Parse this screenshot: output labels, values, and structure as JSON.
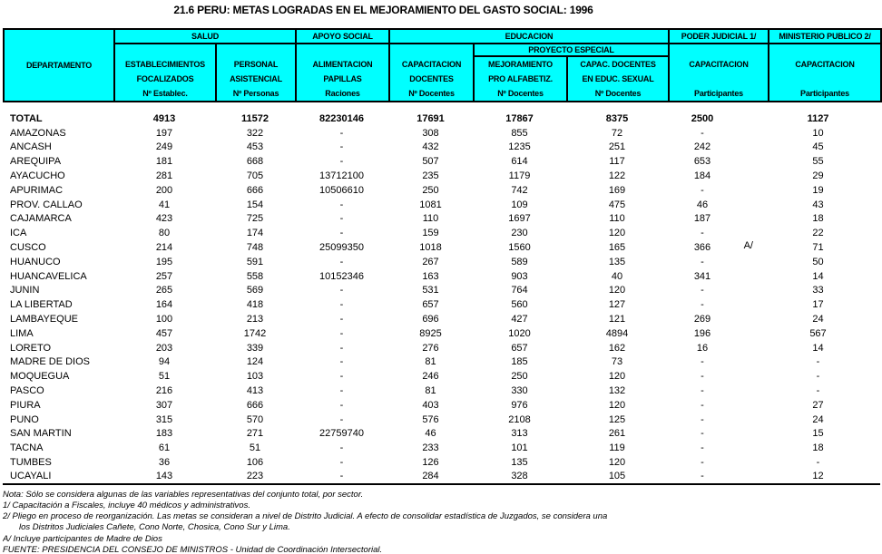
{
  "title": "21.6 PERU: METAS LOGRADAS EN EL MEJORAMIENTO DEL GASTO SOCIAL: 1996",
  "colors": {
    "header_bg": "#00FFFF",
    "border": "#000000",
    "text": "#000000",
    "page_bg": "#FFFFFF"
  },
  "table": {
    "groups": {
      "departamento": "DEPARTAMENTO",
      "salud": "SALUD",
      "apoyo_social": "APOYO SOCIAL",
      "educacion": "EDUCACION",
      "proyecto_especial": "PROYECTO ESPECIAL",
      "poder_judicial": "PODER JUDICIAL 1/",
      "ministerio_publico": "MINISTERIO PUBLICO 2/"
    },
    "columns": [
      {
        "lines": [
          "ESTABLECIMIENTOS",
          "FOCALIZADOS",
          "Nº Establec."
        ]
      },
      {
        "lines": [
          "PERSONAL",
          "ASISTENCIAL",
          "Nº Personas"
        ]
      },
      {
        "lines": [
          "ALIMENTACION",
          "PAPILLAS",
          "Raciones"
        ]
      },
      {
        "lines": [
          "CAPACITACION",
          "DOCENTES",
          "Nº Docentes"
        ]
      },
      {
        "lines": [
          "MEJORAMIENTO",
          "PRO ALFABETIZ.",
          "Nº Docentes"
        ]
      },
      {
        "lines": [
          "CAPAC. DOCENTES",
          "EN EDUC. SEXUAL",
          "Nº Docentes"
        ]
      },
      {
        "lines": [
          "CAPACITACION",
          "",
          "Participantes"
        ]
      },
      {
        "lines": [
          "CAPACITACION",
          "",
          "Participantes"
        ]
      }
    ],
    "rows": [
      {
        "name": "TOTAL",
        "bold": true,
        "values": [
          "4913",
          "11572",
          "82230146",
          "17691",
          "17867",
          "8375",
          "2500",
          "1127"
        ]
      },
      {
        "name": "AMAZONAS",
        "values": [
          "197",
          "322",
          "-",
          "308",
          "855",
          "72",
          "-",
          "10"
        ]
      },
      {
        "name": "ANCASH",
        "values": [
          "249",
          "453",
          "-",
          "432",
          "1235",
          "251",
          "242",
          "45"
        ]
      },
      {
        "name": "AREQUIPA",
        "values": [
          "181",
          "668",
          "-",
          "507",
          "614",
          "117",
          "653",
          "55"
        ]
      },
      {
        "name": "AYACUCHO",
        "values": [
          "281",
          "705",
          "13712100",
          "235",
          "1179",
          "122",
          "184",
          "29"
        ]
      },
      {
        "name": "APURIMAC",
        "values": [
          "200",
          "666",
          "10506610",
          "250",
          "742",
          "169",
          "-",
          "19"
        ]
      },
      {
        "name": "PROV. CALLAO",
        "values": [
          "41",
          "154",
          "-",
          "1081",
          "109",
          "475",
          "46",
          "43"
        ]
      },
      {
        "name": "CAJAMARCA",
        "values": [
          "423",
          "725",
          "-",
          "110",
          "1697",
          "110",
          "187",
          "18"
        ]
      },
      {
        "name": "ICA",
        "values": [
          "80",
          "174",
          "-",
          "159",
          "230",
          "120",
          "-",
          "22"
        ]
      },
      {
        "name": "CUSCO",
        "values": [
          "214",
          "748",
          "25099350",
          "1018",
          "1560",
          "165",
          "366",
          "71"
        ],
        "marker": {
          "col": 6,
          "text": "A/"
        }
      },
      {
        "name": "HUANUCO",
        "values": [
          "195",
          "591",
          "-",
          "267",
          "589",
          "135",
          "-",
          "50"
        ]
      },
      {
        "name": "HUANCAVELICA",
        "values": [
          "257",
          "558",
          "10152346",
          "163",
          "903",
          "40",
          "341",
          "14"
        ]
      },
      {
        "name": "JUNIN",
        "values": [
          "265",
          "569",
          "-",
          "531",
          "764",
          "120",
          "-",
          "33"
        ]
      },
      {
        "name": "LA LIBERTAD",
        "values": [
          "164",
          "418",
          "-",
          "657",
          "560",
          "127",
          "-",
          "17"
        ]
      },
      {
        "name": "LAMBAYEQUE",
        "values": [
          "100",
          "213",
          "-",
          "696",
          "427",
          "121",
          "269",
          "24"
        ]
      },
      {
        "name": "LIMA",
        "values": [
          "457",
          "1742",
          "-",
          "8925",
          "1020",
          "4894",
          "196",
          "567"
        ]
      },
      {
        "name": "LORETO",
        "values": [
          "203",
          "339",
          "-",
          "276",
          "657",
          "162",
          "16",
          "14"
        ]
      },
      {
        "name": "MADRE DE DIOS",
        "values": [
          "94",
          "124",
          "-",
          "81",
          "185",
          "73",
          "-",
          "-"
        ]
      },
      {
        "name": "MOQUEGUA",
        "values": [
          "51",
          "103",
          "-",
          "246",
          "250",
          "120",
          "-",
          "-"
        ]
      },
      {
        "name": "PASCO",
        "values": [
          "216",
          "413",
          "-",
          "81",
          "330",
          "132",
          "-",
          "-"
        ]
      },
      {
        "name": "PIURA",
        "values": [
          "307",
          "666",
          "-",
          "403",
          "976",
          "120",
          "-",
          "27"
        ]
      },
      {
        "name": "PUNO",
        "values": [
          "315",
          "570",
          "-",
          "576",
          "2108",
          "125",
          "-",
          "24"
        ]
      },
      {
        "name": "SAN MARTIN",
        "values": [
          "183",
          "271",
          "22759740",
          "46",
          "313",
          "261",
          "-",
          "15"
        ]
      },
      {
        "name": "TACNA",
        "values": [
          "61",
          "51",
          "-",
          "233",
          "101",
          "119",
          "-",
          "18"
        ]
      },
      {
        "name": "TUMBES",
        "values": [
          "36",
          "106",
          "-",
          "126",
          "135",
          "120",
          "-",
          "-"
        ]
      },
      {
        "name": "UCAYALI",
        "values": [
          "143",
          "223",
          "-",
          "284",
          "328",
          "105",
          "-",
          "12"
        ]
      }
    ]
  },
  "notes": [
    {
      "text": "Nota:   Sólo se considera algunas de las variables representativas del conjunto total,  por sector.",
      "indent": false
    },
    {
      "text": "1/  Capacitación a Fiscales, incluye 40 médicos y administrativos.",
      "indent": false
    },
    {
      "text": "2/  Pliego en proceso de reorganización.  Las metas se consideran a nivel de Distrito Judicial.  A efecto de consolidar estadística de Juzgados, se considera una",
      "indent": false
    },
    {
      "text": "los Distritos Judiciales Cañete, Cono Norte, Chosica, Cono Sur y Lima.",
      "indent": true
    },
    {
      "text": "A/  Incluye participantes de Madre de Dios",
      "indent": false
    },
    {
      "text": "FUENTE:  PRESIDENCIA DEL CONSEJO DE MINISTROS - Unidad de Coordinación Intersectorial.",
      "indent": false
    }
  ]
}
